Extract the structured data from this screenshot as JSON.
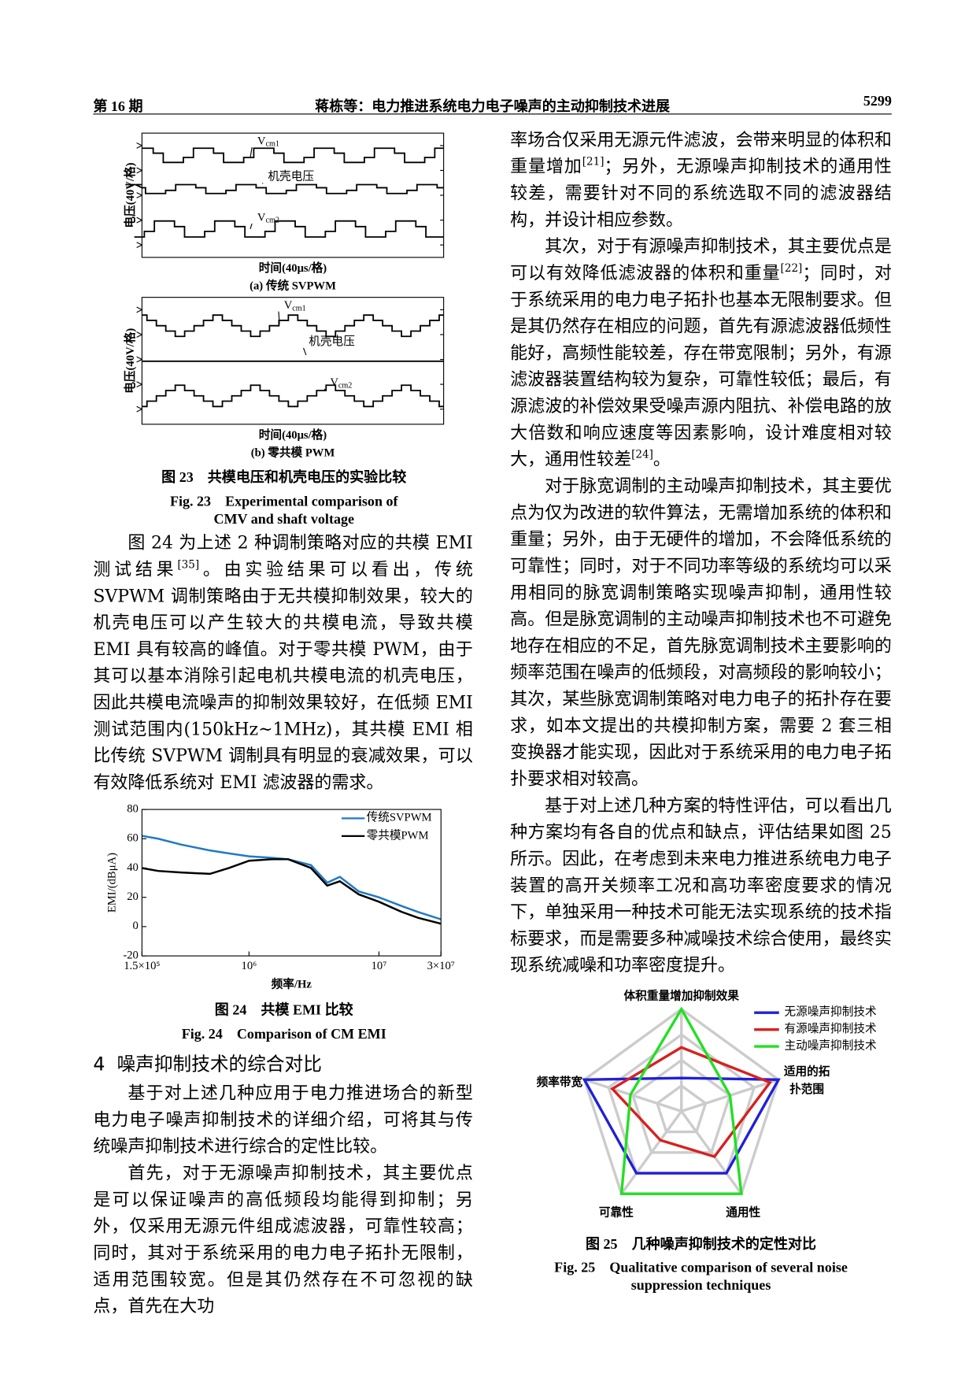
{
  "header": {
    "issue": "第 16 期",
    "title": "蒋栋等：电力推进系统电力电子噪声的主动抑制技术进展",
    "page": "5299"
  },
  "figures": {
    "fig23": {
      "panels": [
        {
          "label": "(a) 传统 SVPWM",
          "ylabel": "电压(40V/格)",
          "xlabel": "时间(40μs/格)",
          "trace_labels": [
            {
              "text": "V",
              "sub": "cm1"
            },
            {
              "text": "机壳电压"
            },
            {
              "text": "V",
              "sub": "cm2"
            }
          ]
        },
        {
          "label": "(b) 零共模 PWM",
          "ylabel": "电压(40V/格)",
          "xlabel": "时间(40μs/格)",
          "trace_labels": [
            {
              "text": "V",
              "sub": "cm1"
            },
            {
              "text": "机壳电压"
            },
            {
              "text": "V",
              "sub": "cm2"
            }
          ]
        }
      ],
      "caption_zh": "图 23　共模电压和机壳电压的实验比较",
      "caption_en": [
        "Fig. 23　Experimental comparison of",
        "CMV and shaft voltage"
      ]
    },
    "fig24": {
      "caption_zh": "图 24　共模 EMI 比较",
      "caption_en": [
        "Fig. 24　Comparison of CM EMI"
      ]
    },
    "fig25": {
      "caption_zh": "图 25　几种噪声抑制技术的定性对比",
      "caption_en": [
        "Fig. 25　Qualitative comparison of several noise",
        "suppression techniques"
      ]
    }
  },
  "left_paragraphs": [
    [
      "图 24 为上述 2 种调制策略对应的共模 EMI 测试结果",
      "[35]",
      "。由实验结果可以看出，传统 SVPWM 调制策略由于无共模抑制效果，较大的机壳电压可以产生较大的共模电流，导致共模 EMI 具有较高的峰值。对于零共模 PWM，由于其可以基本消除引起电机共模电流的机壳电压，因此共模电流噪声的抑制效果较好，在低频 EMI 测试范围内(150kHz~1MHz)，其共模 EMI 相比传统 SVPWM 调制具有明显的衰减效果，可以有效降低系统对 EMI 滤波器的需求。"
    ]
  ],
  "section": {
    "number": "4",
    "title": "噪声抑制技术的综合对比"
  },
  "left_paragraphs_2": [
    [
      "基于对上述几种应用于电力推进场合的新型电力电子噪声抑制技术的详细介绍，可将其与传统噪声抑制技术进行综合的定性比较。"
    ],
    [
      "首先，对于无源噪声抑制技术，其主要优点是可以保证噪声的高低频段均能得到抑制；另外，仅采用无源元件组成滤波器，可靠性较高；同时，其对于系统采用的电力电子拓扑无限制，适用范围较宽。但是其仍然存在不可忽视的缺点，首先在大功"
    ]
  ],
  "right_paragraphs": [
    [
      "率场合仅采用无源元件滤波，会带来明显的体积和重量增加",
      "[21]",
      "；另外，无源噪声抑制技术的通用性较差，需要针对不同的系统选取不同的滤波器结构，并设计相应参数。"
    ],
    [
      "其次，对于有源噪声抑制技术，其主要优点是可以有效降低滤波器的体积和重量",
      "[22]",
      "；同时，对于系统采用的电力电子拓扑也基本无限制要求。但是其仍然存在相应的问题，首先有源滤波器低频性能好，高频性能较差，存在带宽限制；另外，有源滤波器装置结构较为复杂，可靠性较低；最后，有源滤波的补偿效果受噪声源内阻抗、补偿电路的放大倍数和响应速度等因素影响，设计难度相对较大，通用性较差",
      "[24]",
      "。"
    ],
    [
      "对于脉宽调制的主动噪声抑制技术，其主要优点为仅为改进的软件算法，无需增加系统的体积和重量；另外，由于无硬件的增加，不会降低系统的可靠性；同时，对于不同功率等级的系统均可以采用相同的脉宽调制策略实现噪声抑制，通用性较高。但是脉宽调制的主动噪声抑制技术也不可避免地存在相应的不足，首先脉宽调制技术主要影响的频率范围在噪声的低频段，对高频段的影响较小；其次，某些脉宽调制策略对电力电子的拓扑存在要求，如本文提出的共模抑制方案，需要 2 套三相变换器才能实现，因此对于系统采用的电力电子拓扑要求相对较高。"
    ],
    [
      "基于对上述几种方案的特性评估，可以看出几种方案均有各自的优点和缺点，评估结果如图 25 所示。因此，在考虑到未来电力推进系统电力电子装置的高开关频率工况和高功率密度要求的情况下，单独采用一种技术可能无法实现系统的技术指标要求，而是需要多种减噪技术综合使用，最终实现系统减噪和功率密度提升。"
    ]
  ],
  "chart_data": [
    {
      "type": "line",
      "xlabel": "频率/Hz",
      "ylabel": "EMI/(dBμA)",
      "log_x": true,
      "legend": "upper right",
      "x": [
        150000,
        200000,
        300000,
        500000,
        700000,
        1000000,
        1500000,
        2000000,
        3000000,
        4000000,
        5000000,
        7000000,
        10000000,
        15000000,
        20000000,
        30000000
      ],
      "series": [
        {
          "name": "传统SVPWM",
          "color": "#1f7ac4",
          "values": [
            62,
            60,
            56,
            52,
            50,
            48,
            47,
            46,
            42,
            30,
            34,
            24,
            20,
            14,
            10,
            5
          ]
        },
        {
          "name": "零共模PWM",
          "color": "#000000",
          "values": [
            40,
            38,
            37,
            36,
            40,
            45,
            46,
            46,
            40,
            28,
            31,
            22,
            17,
            10,
            6,
            2
          ]
        }
      ],
      "xlim": [
        150000,
        30000000
      ],
      "xticks": [
        {
          "value": 150000,
          "label": "1.5×10⁵"
        },
        {
          "value": 1000000,
          "label": "10⁶"
        },
        {
          "value": 10000000,
          "label": "10⁷"
        },
        {
          "value": 30000000,
          "label": "3×10⁷"
        }
      ],
      "ylim": [
        -20,
        80
      ],
      "yticks": [
        -20,
        0,
        20,
        40,
        60,
        80
      ]
    },
    {
      "type": "radar",
      "legend": "upper right",
      "axes": [
        [
          "体积重量增加抑制效果"
        ],
        [
          "适用的拓",
          "扑范围"
        ],
        [
          "通用性"
        ],
        [
          "可靠性"
        ],
        [
          "频率带宽"
        ]
      ],
      "series": [
        {
          "name": "无源噪声抑制技术",
          "color": "#2020d8",
          "values": [
            1.3,
            4,
            3,
            3,
            4
          ]
        },
        {
          "name": "有源噪声抑制技术",
          "color": "#d82020",
          "values": [
            2.5,
            3.65,
            2.2,
            1.4,
            2.85
          ]
        },
        {
          "name": "主动噪声抑制技术",
          "color": "#22e022",
          "values": [
            4,
            2,
            4,
            4,
            2.1
          ]
        }
      ],
      "rlim": [
        0,
        4
      ],
      "rticks": [
        1,
        2,
        3,
        4
      ]
    }
  ]
}
